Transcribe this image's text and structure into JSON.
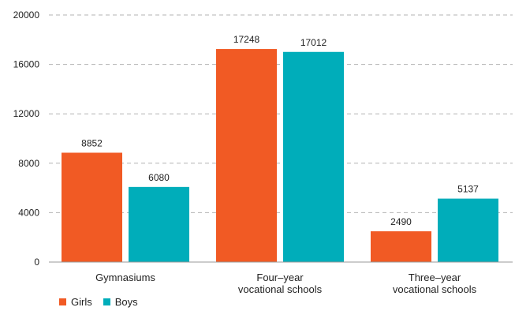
{
  "chart_data": {
    "type": "bar",
    "categories": [
      [
        "Gymnasiums"
      ],
      [
        "Four–year",
        "vocational schools"
      ],
      [
        "Three–year",
        "vocational schools"
      ]
    ],
    "series": [
      {
        "name": "Girls",
        "color": "#f15a24",
        "values": [
          8852,
          17248,
          2490
        ]
      },
      {
        "name": "Boys",
        "color": "#00adba",
        "values": [
          6080,
          17012,
          5137
        ]
      }
    ],
    "ylim": [
      0,
      20000
    ],
    "yticks": [
      0,
      4000,
      8000,
      12000,
      16000,
      20000
    ],
    "grid": true,
    "legend_position": "bottom-left"
  }
}
